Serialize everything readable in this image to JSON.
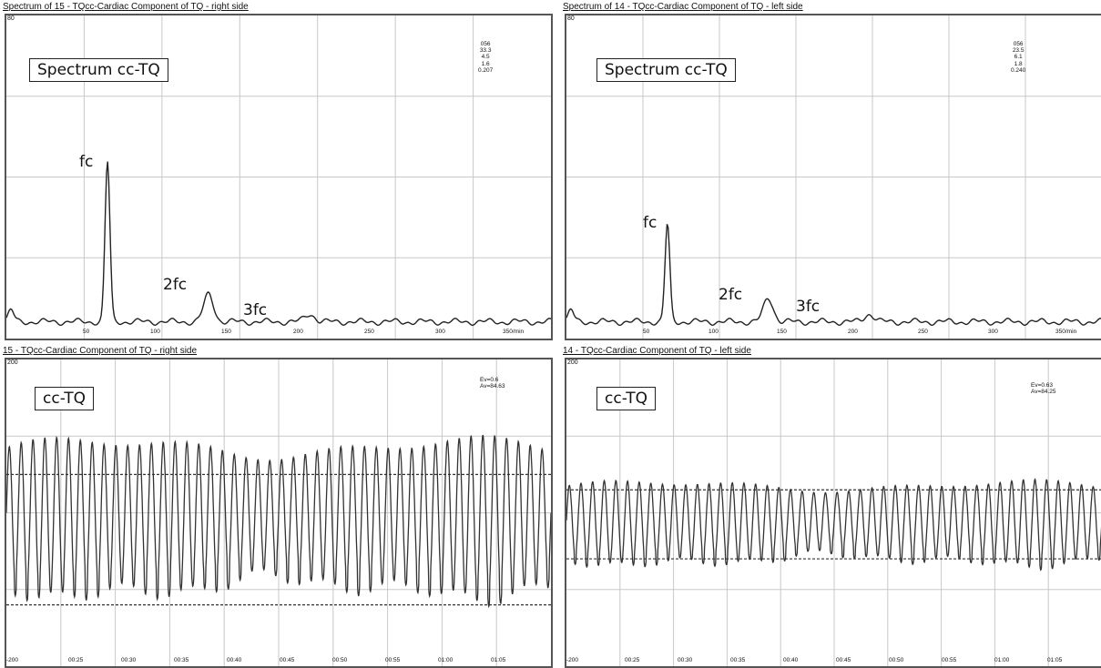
{
  "panels": [
    {
      "id": "spec-right",
      "kind": "spectrum",
      "title": "Spectrum of 15 - TQcc-Cardiac Component of TQ - right side",
      "y_max_label": "80",
      "stats": [
        "056",
        "33.3",
        "4.5",
        "1.6",
        "0.207"
      ],
      "box_label": "Spectrum cc-TQ",
      "peak_labels": [
        "fc",
        "2fc",
        "3fc"
      ],
      "x_ticks": [
        "50",
        "100",
        "150",
        "200",
        "250",
        "300",
        "350/min"
      ]
    },
    {
      "id": "spec-left",
      "kind": "spectrum",
      "title": "Spectrum of 14 - TQcc-Cardiac Component of TQ - left side",
      "y_max_label": "80",
      "stats": [
        "056",
        "23.5",
        "6.1",
        "1.8",
        "0.240"
      ],
      "box_label": "Spectrum cc-TQ",
      "peak_labels": [
        "fc",
        "2fc",
        "3fc"
      ],
      "x_ticks": [
        "50",
        "100",
        "150",
        "200",
        "250",
        "300",
        "350/min"
      ]
    },
    {
      "id": "wave-right",
      "kind": "waveform",
      "title": "15 - TQcc-Cardiac Component of TQ - right side",
      "y_max_label": "200",
      "stats": [
        "Ev=0.6",
        "Av=84.63"
      ],
      "box_label": "cc-TQ",
      "x_ticks": [
        "-200",
        "00:25",
        "00:30",
        "00:35",
        "00:40",
        "00:45",
        "00:50",
        "00:55",
        "01:00",
        "01:05"
      ]
    },
    {
      "id": "wave-left",
      "kind": "waveform",
      "title": "14 - TQcc-Cardiac Component of TQ - left side",
      "y_max_label": "200",
      "stats": [
        "Ev=0.63",
        "Av=84.25"
      ],
      "box_label": "cc-TQ",
      "x_ticks": [
        "-200",
        "00:25",
        "00:30",
        "00:35",
        "00:40",
        "00:45",
        "00:50",
        "00:55",
        "01:00",
        "01:05"
      ]
    }
  ],
  "chart_data": [
    {
      "type": "line",
      "title": "Spectrum of 15 - TQcc-Cardiac Component of TQ - right side",
      "xlim": [
        0,
        350
      ],
      "ylim": [
        0,
        80
      ],
      "grid": true,
      "peaks": [
        {
          "label": "fc",
          "x": 65,
          "y": 41
        },
        {
          "label": "2fc",
          "x": 130,
          "y": 7
        },
        {
          "label": "3fc",
          "x": 195,
          "y": 2
        }
      ],
      "baseline": 1.5
    },
    {
      "type": "line",
      "title": "Spectrum of 14 - TQcc-Cardiac Component of TQ - left side",
      "xlim": [
        0,
        350
      ],
      "ylim": [
        0,
        80
      ],
      "grid": true,
      "peaks": [
        {
          "label": "fc",
          "x": 66,
          "y": 25
        },
        {
          "label": "2fc",
          "x": 132,
          "y": 6
        },
        {
          "label": "3fc",
          "x": 198,
          "y": 2
        }
      ],
      "baseline": 1.5
    },
    {
      "type": "line",
      "title": "15 - TQcc-Cardiac Component of TQ - right side",
      "ylim": [
        -200,
        200
      ],
      "grid": true,
      "cycles": 46,
      "upper_ref": 50,
      "lower_ref": -120,
      "mean": 0,
      "amplitude": 85
    },
    {
      "type": "line",
      "title": "14 - TQcc-Cardiac Component of TQ - left side",
      "ylim": [
        -200,
        200
      ],
      "grid": true,
      "cycles": 46,
      "upper_ref": 30,
      "lower_ref": -60,
      "mean": -10,
      "amplitude": 45
    }
  ]
}
